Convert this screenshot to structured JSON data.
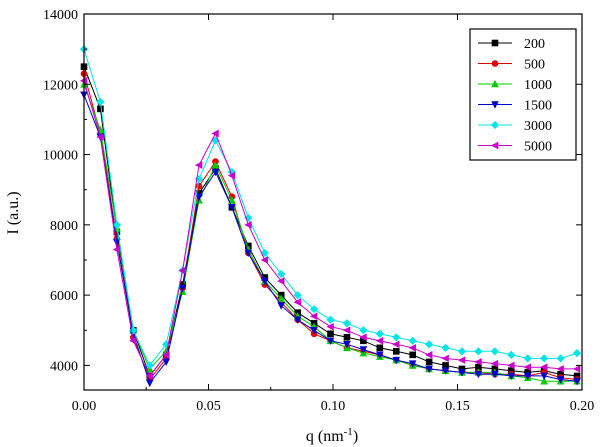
{
  "chart_data": {
    "type": "line",
    "xlabel": "q (nm",
    "xlabel_sup": "-1",
    "xlabel_close": ")",
    "ylabel": "I (a.u.)",
    "xlim": [
      0.0,
      0.2
    ],
    "ylim": [
      3300,
      14000
    ],
    "x_ticks": [
      0.0,
      0.05,
      0.1,
      0.15,
      0.2
    ],
    "x_tick_labels": [
      "0.00",
      "0.05",
      "0.10",
      "0.15",
      "0.20"
    ],
    "y_ticks": [
      4000,
      6000,
      8000,
      10000,
      12000,
      14000
    ],
    "y_tick_labels": [
      "4000",
      "6000",
      "8000",
      "10000",
      "12000",
      "14000"
    ],
    "legend_position": "top-right",
    "grid": false,
    "x": [
      0.0,
      0.0066,
      0.0132,
      0.0198,
      0.0264,
      0.033,
      0.0396,
      0.0462,
      0.0528,
      0.0594,
      0.066,
      0.0726,
      0.0792,
      0.0858,
      0.0924,
      0.099,
      0.1056,
      0.1122,
      0.1188,
      0.1254,
      0.132,
      0.1386,
      0.1452,
      0.1518,
      0.1584,
      0.165,
      0.1716,
      0.1782,
      0.1848,
      0.1914,
      0.198
    ],
    "series": [
      {
        "name": "200",
        "color": "#000000",
        "marker": "square",
        "values": [
          12500,
          11300,
          7800,
          5000,
          3700,
          4300,
          6300,
          8900,
          9600,
          8500,
          7400,
          6500,
          6000,
          5500,
          5200,
          4900,
          4800,
          4700,
          4500,
          4400,
          4300,
          4100,
          4000,
          3900,
          3950,
          3900,
          3850,
          3800,
          3850,
          3750,
          3700
        ]
      },
      {
        "name": "500",
        "color": "#e00000",
        "marker": "circle",
        "values": [
          12300,
          10600,
          7600,
          4800,
          3600,
          4200,
          6200,
          9100,
          9800,
          8800,
          7200,
          6300,
          5800,
          5300,
          4900,
          4700,
          4500,
          4400,
          4300,
          4150,
          4000,
          3900,
          3850,
          3800,
          3800,
          3750,
          3750,
          3700,
          3800,
          3650,
          3600
        ]
      },
      {
        "name": "1000",
        "color": "#00cc00",
        "marker": "triangle-up",
        "values": [
          12000,
          10700,
          7900,
          5000,
          3900,
          4400,
          6100,
          8700,
          9700,
          8700,
          7300,
          6400,
          5900,
          5400,
          5100,
          4700,
          4500,
          4350,
          4250,
          4150,
          4000,
          3900,
          3850,
          3800,
          3800,
          3800,
          3700,
          3650,
          3550,
          3550,
          3550
        ]
      },
      {
        "name": "1500",
        "color": "#0000cc",
        "marker": "triangle-down",
        "values": [
          11700,
          10500,
          7500,
          4900,
          3500,
          4100,
          6200,
          8800,
          9500,
          8500,
          7200,
          6400,
          5700,
          5300,
          5000,
          4700,
          4600,
          4450,
          4300,
          4150,
          4050,
          3900,
          3850,
          3800,
          3750,
          3750,
          3700,
          3700,
          3700,
          3600,
          3550
        ]
      },
      {
        "name": "3000",
        "color": "#00e5e5",
        "marker": "diamond",
        "values": [
          13000,
          11500,
          8000,
          5000,
          4000,
          4600,
          6700,
          9300,
          10400,
          9500,
          8200,
          7200,
          6600,
          6000,
          5600,
          5300,
          5200,
          5000,
          4900,
          4800,
          4700,
          4600,
          4500,
          4400,
          4400,
          4400,
          4300,
          4200,
          4200,
          4200,
          4350
        ]
      },
      {
        "name": "5000",
        "color": "#cc00cc",
        "marker": "triangle-left",
        "values": [
          12100,
          10500,
          7300,
          4700,
          3700,
          4300,
          6700,
          9700,
          10600,
          9400,
          8000,
          7000,
          6400,
          5800,
          5400,
          5100,
          5000,
          4800,
          4700,
          4600,
          4500,
          4300,
          4200,
          4150,
          4100,
          4050,
          4000,
          3950,
          3950,
          3900,
          3900
        ]
      }
    ]
  }
}
